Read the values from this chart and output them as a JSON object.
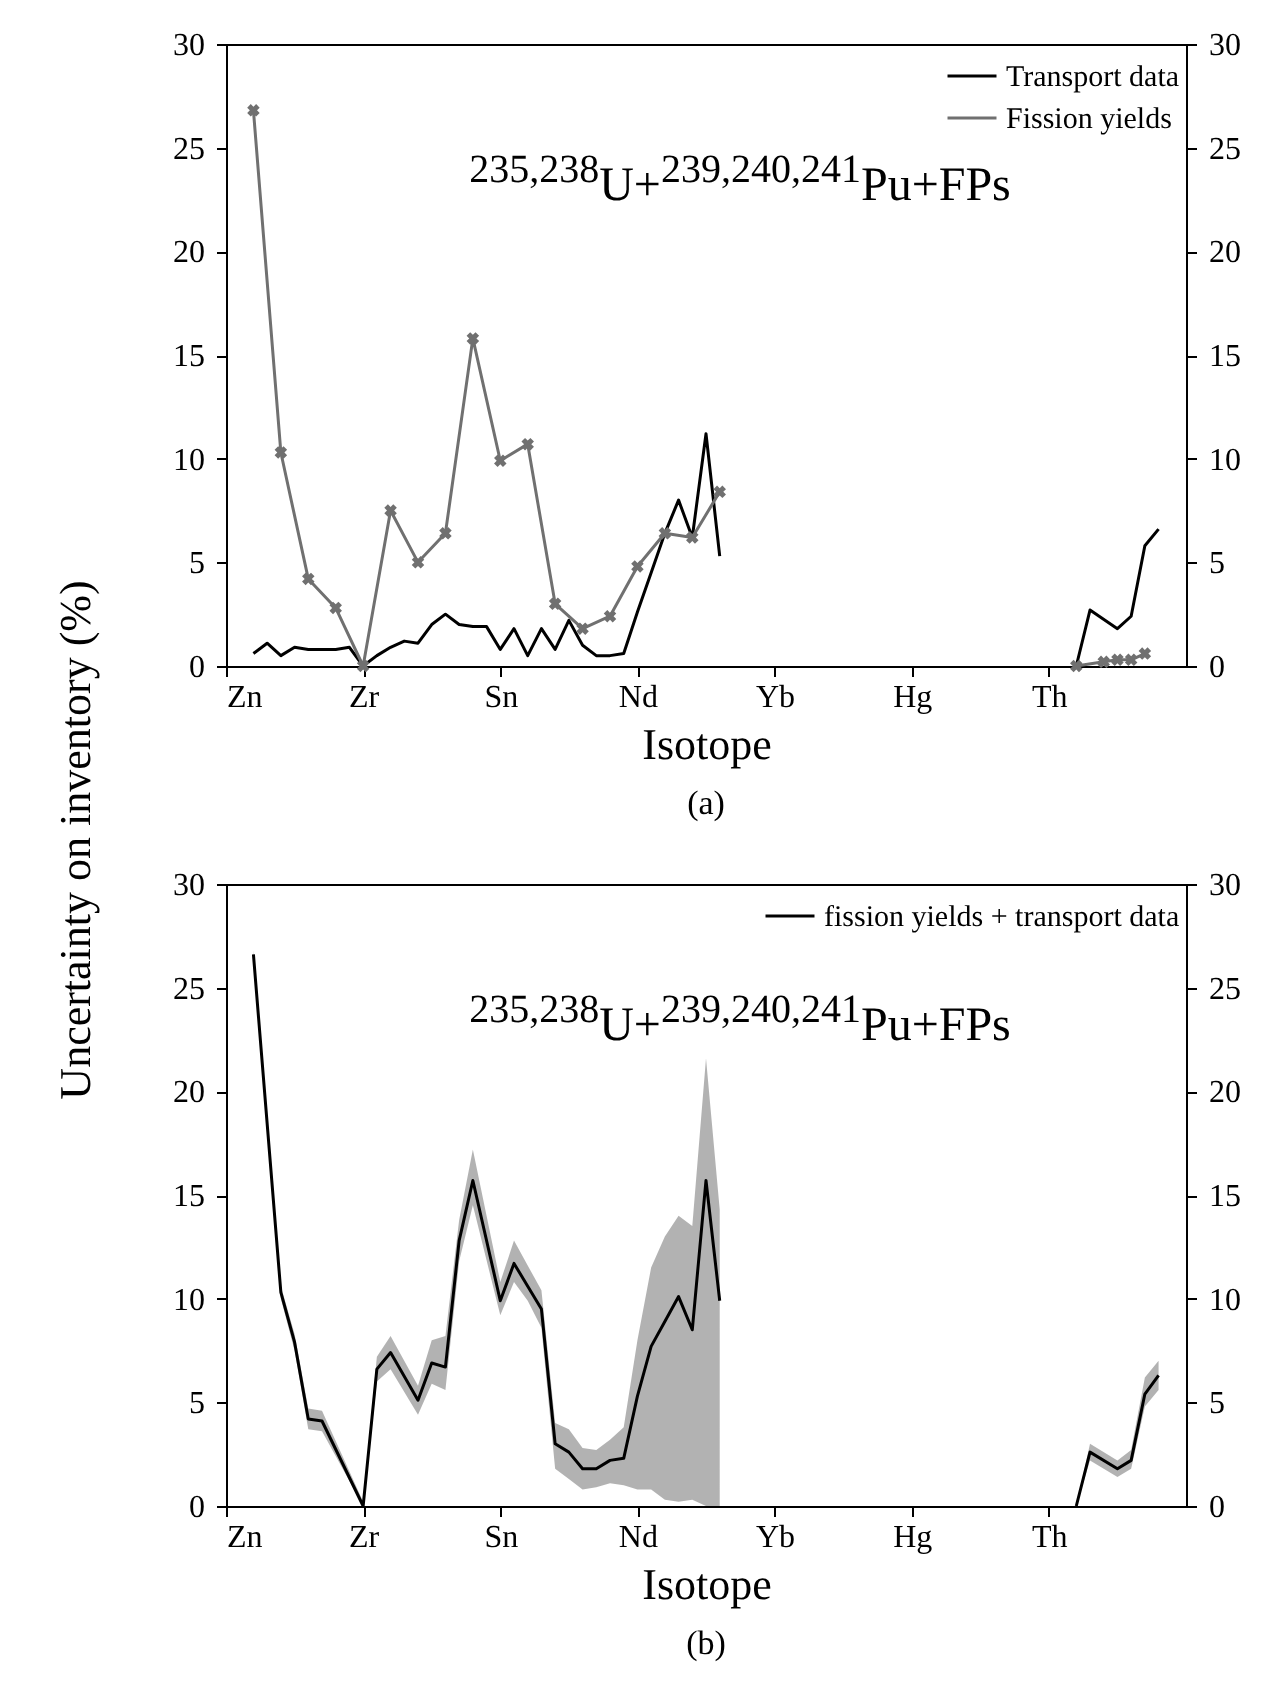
{
  "chart_data": [
    {
      "type": "line",
      "xlabel": "Isotope",
      "ylabel": "Uncertainty on inventory (%)",
      "annotations": [
        "$^{235,238}$U+$^{239,240,241}$Pu+FPs",
        "(a)"
      ],
      "categories": [
        "Zn",
        null,
        null,
        null,
        null,
        null,
        null,
        null,
        null,
        null,
        "Zr",
        null,
        null,
        null,
        null,
        null,
        null,
        null,
        null,
        null,
        "Sn",
        null,
        null,
        null,
        null,
        null,
        null,
        null,
        null,
        null,
        "Nd",
        null,
        null,
        null,
        null,
        null,
        null,
        null,
        null,
        null,
        "Yb",
        null,
        null,
        null,
        null,
        null,
        null,
        null,
        null,
        null,
        "Hg",
        null,
        null,
        null,
        null,
        null,
        null,
        null,
        null,
        null,
        "Th",
        null,
        null,
        null,
        null,
        null,
        null,
        null,
        null,
        null,
        null
      ],
      "ylim": [
        0,
        30
      ],
      "yticks": [
        0,
        5,
        10,
        15,
        20,
        25,
        30
      ],
      "y2lim": [
        0,
        30
      ],
      "y2ticks": [
        0,
        5,
        10,
        15,
        20,
        25,
        30
      ],
      "legend": "top right",
      "series": [
        {
          "name": "Transport data",
          "color": "#000000",
          "marker": "none",
          "values": [
            null,
            null,
            0.6,
            1.1,
            0.5,
            0.9,
            0.8,
            0.8,
            0.8,
            0.9,
            0,
            0.5,
            0.9,
            1.2,
            1.1,
            2.0,
            2.5,
            2.0,
            1.9,
            1.9,
            0.8,
            1.8,
            0.5,
            1.8,
            0.8,
            2.2,
            1.0,
            0.5,
            0.5,
            0.6,
            2.6,
            4.5,
            6.4,
            8.0,
            6.2,
            11.2,
            5.3,
            null,
            null,
            null,
            null,
            null,
            null,
            null,
            null,
            null,
            null,
            null,
            null,
            null,
            null,
            null,
            null,
            null,
            null,
            null,
            null,
            null,
            null,
            null,
            null,
            null,
            null,
            null,
            null,
            null,
            null,
            null,
            null,
            null,
            null
          ]
        },
        {
          "color": "#000000",
          "marker": "none",
          "values": [
            null,
            null,
            null,
            null,
            null,
            null,
            null,
            null,
            null,
            null,
            null,
            null,
            null,
            null,
            null,
            null,
            null,
            null,
            null,
            null,
            null,
            null,
            null,
            null,
            null,
            null,
            null,
            null,
            null,
            null,
            null,
            null,
            null,
            null,
            null,
            null,
            null,
            null,
            null,
            null,
            null,
            null,
            null,
            null,
            null,
            null,
            null,
            null,
            null,
            null,
            null,
            null,
            null,
            null,
            null,
            null,
            null,
            null,
            null,
            null,
            null,
            null,
            0,
            2.7,
            null,
            1.8,
            2.4,
            5.8,
            6.6,
            null,
            null
          ]
        },
        {
          "name": "Fission yields",
          "color": "#707070",
          "marker": "cross",
          "values": [
            null,
            null,
            26.8,
            null,
            10.3,
            null,
            4.2,
            null,
            2.8,
            null,
            0,
            null,
            7.5,
            null,
            5.0,
            null,
            6.4,
            null,
            15.8,
            null,
            9.9,
            null,
            10.7,
            null,
            3.0,
            null,
            1.8,
            null,
            2.4,
            null,
            4.8,
            null,
            6.4,
            null,
            6.2,
            null,
            8.4,
            null,
            null,
            null,
            null,
            null,
            null,
            null,
            null,
            null,
            null,
            null,
            null,
            null,
            null,
            null,
            null,
            null,
            null,
            null,
            null,
            null,
            null,
            null,
            null,
            null,
            null,
            null,
            null,
            null,
            null,
            null,
            null,
            null,
            null
          ]
        },
        {
          "color": "#707070",
          "marker": "cross",
          "values": [
            null,
            null,
            null,
            null,
            null,
            null,
            null,
            null,
            null,
            null,
            null,
            null,
            null,
            null,
            null,
            null,
            null,
            null,
            null,
            null,
            null,
            null,
            null,
            null,
            null,
            null,
            null,
            null,
            null,
            null,
            null,
            null,
            null,
            null,
            null,
            null,
            null,
            null,
            null,
            null,
            null,
            null,
            null,
            null,
            null,
            null,
            null,
            null,
            null,
            null,
            null,
            null,
            null,
            null,
            null,
            null,
            null,
            null,
            null,
            null,
            null,
            null,
            0,
            null,
            0.2,
            0.3,
            0.3,
            0.6,
            null,
            null,
            null
          ]
        }
      ]
    },
    {
      "type": "line",
      "xlabel": "Isotope",
      "annotations": [
        "$^{235,238}$U+$^{239,240,241}$Pu+FPs",
        "(b)"
      ],
      "categories": [
        "Zn",
        null,
        null,
        null,
        null,
        null,
        null,
        null,
        null,
        null,
        "Zr",
        null,
        null,
        null,
        null,
        null,
        null,
        null,
        null,
        null,
        "Sn",
        null,
        null,
        null,
        null,
        null,
        null,
        null,
        null,
        null,
        "Nd",
        null,
        null,
        null,
        null,
        null,
        null,
        null,
        null,
        null,
        "Yb",
        null,
        null,
        null,
        null,
        null,
        null,
        null,
        null,
        null,
        "Hg",
        null,
        null,
        null,
        null,
        null,
        null,
        null,
        null,
        null,
        "Th",
        null,
        null,
        null,
        null,
        null,
        null,
        null,
        null,
        null,
        null
      ],
      "ylim": [
        0,
        30
      ],
      "yticks": [
        0,
        5,
        10,
        15,
        20,
        25,
        30
      ],
      "y2lim": [
        0,
        30
      ],
      "y2ticks": [
        0,
        5,
        10,
        15,
        20,
        25,
        30
      ],
      "legend": "top right",
      "series": [
        {
          "name": "fission yields + transport data",
          "color": "#000000",
          "marker": "none",
          "values": [
            null,
            null,
            26.6,
            null,
            10.3,
            7.9,
            4.2,
            4.1,
            null,
            null,
            0,
            6.6,
            7.4,
            null,
            5.1,
            6.9,
            6.7,
            12.8,
            15.7,
            null,
            9.9,
            11.7,
            10.6,
            9.5,
            3.0,
            2.6,
            1.8,
            1.8,
            2.2,
            2.3,
            5.3,
            7.7,
            8.9,
            10.1,
            8.5,
            15.7,
            9.9,
            null,
            null,
            null,
            null,
            null,
            null,
            null,
            null,
            null,
            null,
            null,
            null,
            null,
            null,
            null,
            null,
            null,
            null,
            null,
            null,
            null,
            null,
            null,
            null,
            null,
            null,
            null,
            null,
            null,
            null,
            null,
            null,
            null,
            null
          ],
          "lower": [
            null,
            null,
            26.4,
            null,
            10.0,
            7.5,
            3.7,
            3.6,
            null,
            null,
            0,
            6.0,
            6.6,
            null,
            4.4,
            5.9,
            5.6,
            11.8,
            14.5,
            null,
            9.2,
            10.8,
            9.9,
            8.6,
            1.8,
            1.3,
            0.8,
            0.9,
            1.1,
            1.0,
            0.8,
            0.8,
            0.3,
            0.2,
            0.3,
            0,
            0,
            null,
            null,
            null,
            null,
            null,
            null,
            null,
            null,
            null,
            null,
            null,
            null,
            null,
            null,
            null,
            null,
            null,
            null,
            null,
            null,
            null,
            null,
            null,
            null,
            null,
            null,
            null,
            null,
            null,
            null,
            null,
            null,
            null,
            null
          ],
          "upper": [
            null,
            null,
            26.8,
            null,
            10.6,
            8.3,
            4.7,
            4.6,
            null,
            null,
            0.2,
            7.2,
            8.2,
            null,
            5.8,
            8.0,
            8.2,
            13.8,
            17.2,
            null,
            10.8,
            12.8,
            11.6,
            10.4,
            4.0,
            3.7,
            2.8,
            2.7,
            3.2,
            3.8,
            8.0,
            11.5,
            13.0,
            14.0,
            13.5,
            21.6,
            14.3,
            null,
            null,
            null,
            null,
            null,
            null,
            null,
            null,
            null,
            null,
            null,
            null,
            null,
            null,
            null,
            null,
            null,
            null,
            null,
            null,
            null,
            null,
            null,
            null,
            null,
            null,
            null,
            null,
            null,
            null,
            null,
            null,
            null,
            null
          ]
        },
        {
          "color": "#000000",
          "marker": "none",
          "values": [
            null,
            null,
            null,
            null,
            null,
            null,
            null,
            null,
            null,
            null,
            null,
            null,
            null,
            null,
            null,
            null,
            null,
            null,
            null,
            null,
            null,
            null,
            null,
            null,
            null,
            null,
            null,
            null,
            null,
            null,
            null,
            null,
            null,
            null,
            null,
            null,
            null,
            null,
            null,
            null,
            null,
            null,
            null,
            null,
            null,
            null,
            null,
            null,
            null,
            null,
            null,
            null,
            null,
            null,
            null,
            null,
            null,
            null,
            null,
            null,
            null,
            null,
            0,
            2.6,
            null,
            1.8,
            2.2,
            5.4,
            6.3,
            null,
            null
          ],
          "lower": [
            null,
            null,
            null,
            null,
            null,
            null,
            null,
            null,
            null,
            null,
            null,
            null,
            null,
            null,
            null,
            null,
            null,
            null,
            null,
            null,
            null,
            null,
            null,
            null,
            null,
            null,
            null,
            null,
            null,
            null,
            null,
            null,
            null,
            null,
            null,
            null,
            null,
            null,
            null,
            null,
            null,
            null,
            null,
            null,
            null,
            null,
            null,
            null,
            null,
            null,
            null,
            null,
            null,
            null,
            null,
            null,
            null,
            null,
            null,
            null,
            null,
            null,
            0,
            2.2,
            null,
            1.4,
            1.8,
            4.8,
            5.6,
            null,
            null
          ],
          "upper": [
            null,
            null,
            null,
            null,
            null,
            null,
            null,
            null,
            null,
            null,
            null,
            null,
            null,
            null,
            null,
            null,
            null,
            null,
            null,
            null,
            null,
            null,
            null,
            null,
            null,
            null,
            null,
            null,
            null,
            null,
            null,
            null,
            null,
            null,
            null,
            null,
            null,
            null,
            null,
            null,
            null,
            null,
            null,
            null,
            null,
            null,
            null,
            null,
            null,
            null,
            null,
            null,
            null,
            null,
            null,
            null,
            null,
            null,
            null,
            null,
            null,
            null,
            0,
            3.0,
            null,
            2.2,
            2.7,
            6.2,
            7.0,
            null,
            null
          ]
        }
      ]
    }
  ]
}
